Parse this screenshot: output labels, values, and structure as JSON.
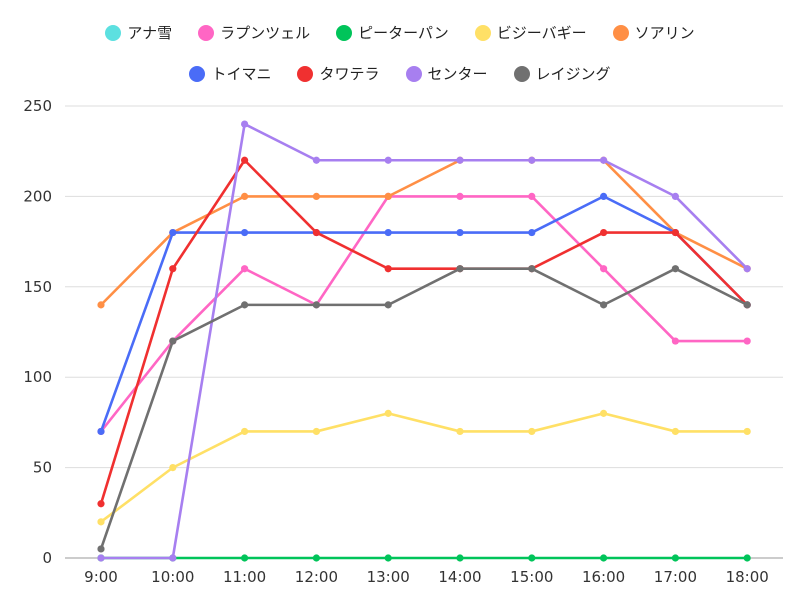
{
  "chart_data": {
    "type": "line",
    "categories": [
      "9:00",
      "10:00",
      "11:00",
      "12:00",
      "13:00",
      "14:00",
      "15:00",
      "16:00",
      "17:00",
      "18:00"
    ],
    "ylim": [
      0,
      250
    ],
    "yticks": [
      0,
      50,
      100,
      150,
      200,
      250
    ],
    "grid": true,
    "legend_position": "top",
    "series": [
      {
        "name": "アナ雪",
        "color": "#5ce0e0",
        "values": [
          null,
          null,
          null,
          null,
          null,
          null,
          null,
          null,
          null,
          null
        ]
      },
      {
        "name": "ラプンツェル",
        "color": "#ff66c4",
        "values": [
          70,
          120,
          160,
          140,
          200,
          200,
          200,
          160,
          120,
          120
        ]
      },
      {
        "name": "ピーターパン",
        "color": "#00c45a",
        "values": [
          0,
          0,
          0,
          0,
          0,
          0,
          0,
          0,
          0,
          0
        ]
      },
      {
        "name": "ビジーバギー",
        "color": "#ffe066",
        "values": [
          20,
          50,
          70,
          70,
          80,
          70,
          70,
          80,
          70,
          70
        ]
      },
      {
        "name": "ソアリン",
        "color": "#ff8f45",
        "values": [
          140,
          180,
          200,
          200,
          200,
          220,
          220,
          220,
          180,
          160
        ]
      },
      {
        "name": "トイマニ",
        "color": "#4a6cf7",
        "values": [
          70,
          180,
          180,
          180,
          180,
          180,
          180,
          200,
          180,
          140
        ]
      },
      {
        "name": "タワテラ",
        "color": "#f03030",
        "values": [
          30,
          160,
          220,
          180,
          160,
          160,
          160,
          180,
          180,
          140
        ]
      },
      {
        "name": "センター",
        "color": "#a77ff0",
        "values": [
          0,
          0,
          240,
          220,
          220,
          220,
          220,
          220,
          200,
          160
        ]
      },
      {
        "name": "レイジング",
        "color": "#707070",
        "values": [
          5,
          120,
          140,
          140,
          140,
          160,
          160,
          140,
          160,
          140
        ]
      }
    ]
  }
}
